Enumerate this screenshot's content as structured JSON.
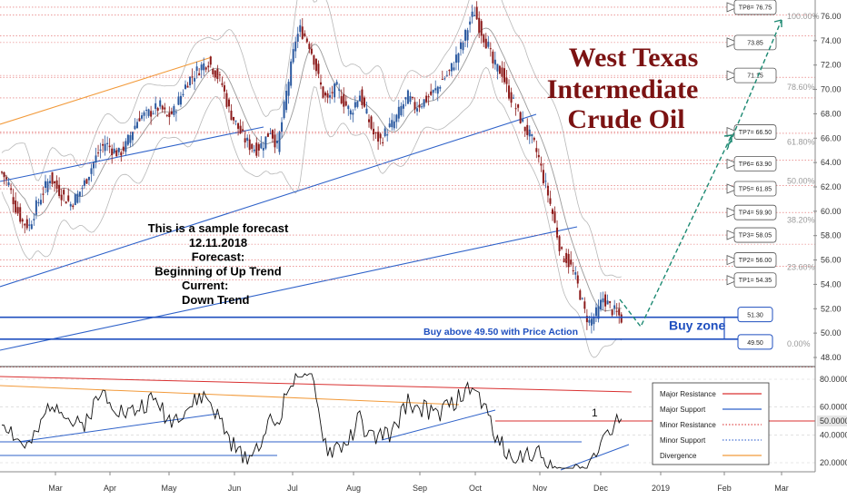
{
  "chart_data": [
    {
      "type": "candlestick",
      "title": "West Texas Intermediate Crude Oil",
      "ylim": [
        47,
        77
      ],
      "y_ticks": [
        "48.00",
        "50.00",
        "52.00",
        "54.00",
        "56.00",
        "58.00",
        "60.00",
        "62.00",
        "64.00",
        "66.00",
        "68.00",
        "70.00",
        "72.00",
        "74.00",
        "76.00"
      ],
      "x_ticks": [
        "Mar",
        "Apr",
        "May",
        "Jun",
        "Jul",
        "Aug",
        "Sep",
        "Oct",
        "Nov",
        "Dec",
        "2019",
        "Feb",
        "Mar"
      ],
      "close_path": [
        [
          0,
          63.2
        ],
        [
          3,
          62.2
        ],
        [
          6,
          60.3
        ],
        [
          9,
          59.1
        ],
        [
          12,
          58.8
        ],
        [
          15,
          60.4
        ],
        [
          18,
          61.6
        ],
        [
          21,
          62.8
        ],
        [
          24,
          61.9
        ],
        [
          27,
          61.2
        ],
        [
          30,
          60.6
        ],
        [
          33,
          61.3
        ],
        [
          36,
          62.3
        ],
        [
          39,
          63.6
        ],
        [
          42,
          64.8
        ],
        [
          45,
          65.6
        ],
        [
          48,
          65.1
        ],
        [
          51,
          64.7
        ],
        [
          54,
          65.4
        ],
        [
          57,
          66.7
        ],
        [
          60,
          67.8
        ],
        [
          63,
          67.9
        ],
        [
          66,
          68.3
        ],
        [
          69,
          68.6
        ],
        [
          72,
          67.7
        ],
        [
          75,
          68.2
        ],
        [
          78,
          69.5
        ],
        [
          81,
          70.7
        ],
        [
          84,
          71.3
        ],
        [
          87,
          71.9
        ],
        [
          90,
          72.3
        ],
        [
          93,
          71.4
        ],
        [
          96,
          70.4
        ],
        [
          99,
          68.3
        ],
        [
          102,
          67.2
        ],
        [
          105,
          66.1
        ],
        [
          108,
          65.4
        ],
        [
          111,
          65.1
        ],
        [
          114,
          65.6
        ],
        [
          117,
          66.7
        ],
        [
          120,
          65.3
        ],
        [
          122,
          67.3
        ],
        [
          124,
          69.7
        ],
        [
          126,
          71.8
        ],
        [
          128,
          74.1
        ],
        [
          130,
          74.9
        ],
        [
          132,
          74.4
        ],
        [
          134,
          73.7
        ],
        [
          136,
          72.5
        ],
        [
          138,
          70.9
        ],
        [
          140,
          69.6
        ],
        [
          142,
          69.1
        ],
        [
          144,
          69.8
        ],
        [
          146,
          70.1
        ],
        [
          148,
          69.3
        ],
        [
          150,
          68.7
        ],
        [
          152,
          68.1
        ],
        [
          154,
          68.9
        ],
        [
          156,
          69.6
        ],
        [
          158,
          68.4
        ],
        [
          160,
          67.4
        ],
        [
          162,
          66.3
        ],
        [
          165,
          65.8
        ],
        [
          168,
          66.7
        ],
        [
          171,
          67.3
        ],
        [
          174,
          68.5
        ],
        [
          177,
          69.4
        ],
        [
          180,
          68.6
        ],
        [
          183,
          68.9
        ],
        [
          186,
          69.4
        ],
        [
          189,
          69.9
        ],
        [
          192,
          70.8
        ],
        [
          195,
          71.4
        ],
        [
          198,
          72.6
        ],
        [
          201,
          73.9
        ],
        [
          204,
          75.6
        ],
        [
          206,
          76.4
        ],
        [
          208,
          75.2
        ],
        [
          210,
          74.3
        ],
        [
          212,
          73.5
        ],
        [
          214,
          72.1
        ],
        [
          216,
          71.7
        ],
        [
          218,
          71.4
        ],
        [
          220,
          70.1
        ],
        [
          222,
          69.3
        ],
        [
          224,
          68.5
        ],
        [
          226,
          67.6
        ],
        [
          228,
          66.8
        ],
        [
          230,
          66.2
        ],
        [
          232,
          65.4
        ],
        [
          234,
          64.3
        ],
        [
          236,
          62.7
        ],
        [
          238,
          61.4
        ],
        [
          240,
          59.8
        ],
        [
          242,
          58.1
        ],
        [
          244,
          56.4
        ],
        [
          246,
          56.1
        ],
        [
          248,
          55.4
        ],
        [
          250,
          54.5
        ],
        [
          252,
          53.2
        ],
        [
          254,
          51.7
        ],
        [
          256,
          50.9
        ],
        [
          258,
          51.3
        ],
        [
          260,
          51.9
        ],
        [
          262,
          52.9
        ],
        [
          264,
          52.4
        ],
        [
          266,
          51.9
        ],
        [
          268,
          51.6
        ],
        [
          270,
          51.2
        ]
      ],
      "close_path_x_unit": "trading bar index",
      "fib_levels": [
        {
          "label": "100.00%",
          "y": 76.0
        },
        {
          "label": "78.60%",
          "y": 70.2
        },
        {
          "label": "61.80%",
          "y": 65.7
        },
        {
          "label": "50.00%",
          "y": 62.5
        },
        {
          "label": "38.20%",
          "y": 59.3
        },
        {
          "label": "23.60%",
          "y": 55.4
        },
        {
          "label": "0.00%",
          "y": 49.1
        }
      ],
      "targets": [
        {
          "label": "TP8= 76.75",
          "y": 76.75
        },
        {
          "label": "73.85",
          "y": 73.85
        },
        {
          "label": "71.15",
          "y": 71.15
        },
        {
          "label": "TP7= 66.50",
          "y": 66.5
        },
        {
          "label": "TP6= 63.90",
          "y": 63.9
        },
        {
          "label": "TP5= 61.85",
          "y": 61.85
        },
        {
          "label": "TP4= 59.90",
          "y": 59.9
        },
        {
          "label": "TP3= 58.05",
          "y": 58.05
        },
        {
          "label": "TP2= 56.00",
          "y": 56.0
        },
        {
          "label": "TP1= 54.35",
          "y": 54.35
        }
      ],
      "buy_zone": {
        "label": "Buy zone",
        "upper": "51.30",
        "lower": "49.50",
        "upper_value": 51.3,
        "lower_value": 49.5
      },
      "annotation": "Buy above 49.50 with Price Action",
      "forecast_note": [
        "This is a sample forecast",
        "12.11.2018",
        "Forecast:",
        "Beginning of Up Trend",
        "Current:",
        "Down Trend"
      ]
    },
    {
      "type": "line",
      "name": "oscillator",
      "ylim": [
        10,
        90
      ],
      "y_ticks": [
        "80.0000",
        "60.0000",
        "50.0000",
        "40.0000",
        "20.0000"
      ],
      "current_value": "50.0000",
      "label": "1"
    }
  ],
  "legend": [
    {
      "label": "Major Resistance",
      "color": "#d93030",
      "style": "solid"
    },
    {
      "label": "Major Support",
      "color": "#2f62c9",
      "style": "solid"
    },
    {
      "label": "Minor Resistance",
      "color": "#e05050",
      "style": "dotted"
    },
    {
      "label": "Minor Support",
      "color": "#4a74d4",
      "style": "dotted"
    },
    {
      "label": "Divergence",
      "color": "#f29a3a",
      "style": "solid"
    }
  ],
  "colors": {
    "up": "#2c5aa0",
    "down": "#8b1a1a",
    "title": "#7b1212",
    "forecast": "#1e8a73",
    "support": "#2f62c9",
    "divergence": "#f29a3a"
  }
}
